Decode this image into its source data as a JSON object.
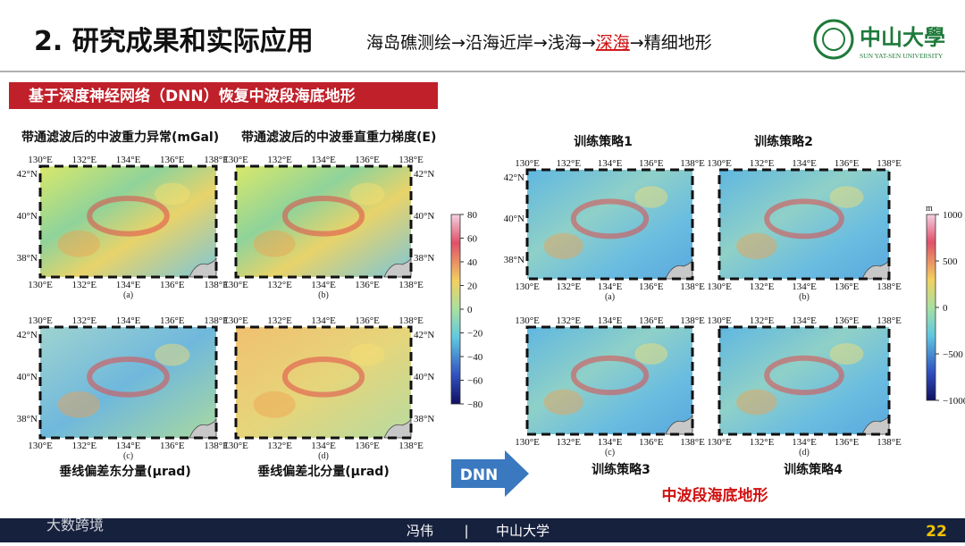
{
  "header": {
    "title": "2. 研究成果和实际应用",
    "route": [
      "海岛礁测绘→沿海近岸→浅海→",
      "深海",
      "→精细地形"
    ],
    "logo_cn": "中山大學",
    "logo_en": "SUN YAT-SEN UNIVERSITY"
  },
  "banner": "基于深度神经网络（DNN）恢复中波段海底地形",
  "left": {
    "headings": [
      "带通滤波后的中波重力异常(mGal)",
      "带通滤波后的中波垂直重力梯度(E)"
    ],
    "captions": [
      "垂线偏差东分量(μrad)",
      "垂线偏差北分量(μrad)"
    ],
    "panels": [
      "(a)",
      "(b)",
      "(c)",
      "(d)"
    ],
    "colorbar": [
      "80",
      "60",
      "40",
      "20",
      "0",
      "−20",
      "−40",
      "−60",
      "−80"
    ]
  },
  "right": {
    "strategies": [
      "训练策略1",
      "训练策略2",
      "训练策略3",
      "训练策略4"
    ],
    "panels": [
      "(a)",
      "(b)",
      "(c)",
      "(d)"
    ],
    "colorbar_unit": "m",
    "colorbar": [
      "1000",
      "500",
      "0",
      "−500",
      "−1000"
    ],
    "caption": "中波段海底地形"
  },
  "map_axes": {
    "lon": [
      "130°E",
      "132°E",
      "134°E",
      "136°E",
      "138°E"
    ],
    "lat": [
      "42°N",
      "40°N",
      "38°N"
    ]
  },
  "arrow": "DNN",
  "footer": {
    "author": "冯伟",
    "separator": "|",
    "org": "中山大学",
    "page": "22",
    "watermark": "大数跨境"
  }
}
